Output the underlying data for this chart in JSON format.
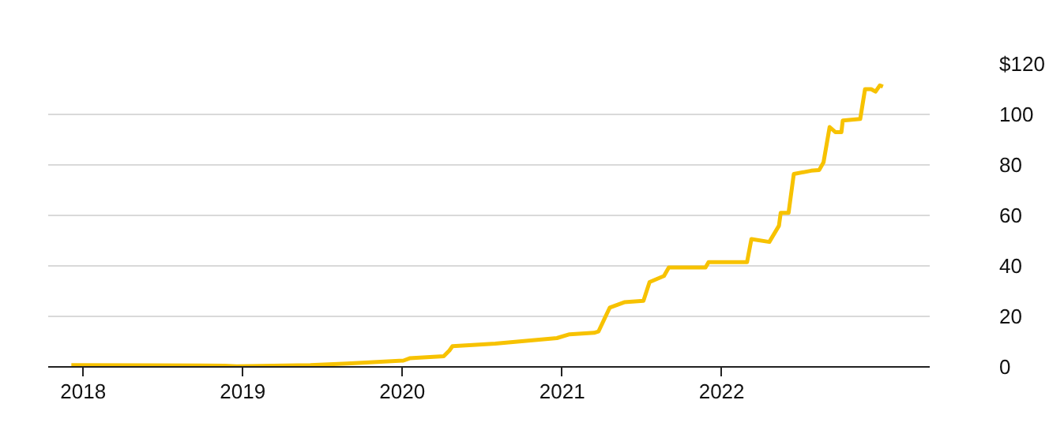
{
  "chart_data": {
    "type": "line",
    "x": [
      "2017-12-05",
      "2018-06-05",
      "2018-11-20",
      "2018-12-18",
      "2019-06-05",
      "2019-08-28",
      "2020-01-04",
      "2020-01-18",
      "2020-04-05",
      "2020-04-18",
      "2020-04-25",
      "2020-06-10",
      "2020-08-01",
      "2020-12-20",
      "2021-01-18",
      "2021-03-15",
      "2021-03-25",
      "2021-04-20",
      "2021-05-23",
      "2021-07-06",
      "2021-07-20",
      "2021-08-22",
      "2021-09-02",
      "2021-11-25",
      "2021-12-02",
      "2022-02-28",
      "2022-03-10",
      "2022-04-20",
      "2022-05-12",
      "2022-05-16",
      "2022-06-03",
      "2022-06-15",
      "2022-07-25",
      "2022-08-12",
      "2022-08-22",
      "2022-09-05",
      "2022-09-18",
      "2022-10-02",
      "2022-10-05",
      "2022-11-14",
      "2022-11-25",
      "2022-12-09",
      "2022-12-19",
      "2022-12-29",
      "2023-01-05"
    ],
    "series": [
      {
        "color": "#f7c200",
        "values": [
          0.7,
          0.6,
          0.5,
          0.2,
          0.7,
          1.3,
          2.5,
          3.4,
          4.2,
          6.5,
          8.2,
          8.7,
          9.2,
          11.4,
          12.9,
          13.5,
          14,
          23.5,
          25.6,
          26.2,
          33.6,
          36,
          39.4,
          39.4,
          41.5,
          41.5,
          50.6,
          49.5,
          55.9,
          61,
          61,
          76.4,
          77.7,
          78,
          81,
          95,
          93,
          93,
          97.6,
          98.2,
          110,
          110,
          109,
          111.5,
          111
        ]
      }
    ],
    "xlim": [
      "2017-10-13",
      "2023-04-22"
    ],
    "xticks": [
      {
        "value": "2018-01-01",
        "label": "2018"
      },
      {
        "value": "2019-01-01",
        "label": "2019"
      },
      {
        "value": "2020-01-01",
        "label": "2020"
      },
      {
        "value": "2021-01-01",
        "label": "2021"
      },
      {
        "value": "2022-01-01",
        "label": "2022"
      }
    ],
    "ylim": [
      0,
      120
    ],
    "yticks": [
      0,
      20,
      40,
      60,
      80,
      100,
      {
        "value": 120,
        "label": "$120"
      }
    ],
    "grid": "y",
    "line_style": "solid"
  }
}
